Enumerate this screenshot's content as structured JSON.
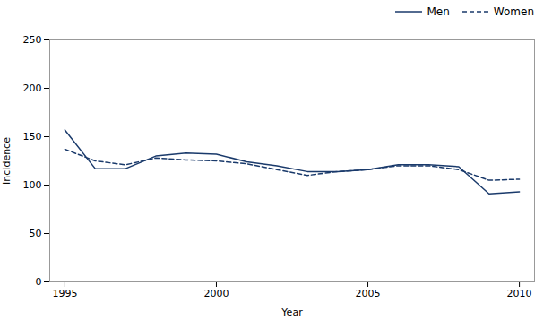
{
  "chart_data": {
    "type": "line",
    "xlabel": "Year",
    "ylabel": "Incidence",
    "x": [
      1995,
      1996,
      1997,
      1998,
      1999,
      2000,
      2001,
      2002,
      2003,
      2004,
      2005,
      2006,
      2007,
      2008,
      2009,
      2010
    ],
    "series": [
      {
        "name": "Men",
        "color": "#1a3a6b",
        "line_style": "solid",
        "values": [
          157,
          117,
          117,
          130,
          133,
          132,
          124,
          120,
          114,
          114,
          116,
          121,
          121,
          119,
          91,
          93
        ]
      },
      {
        "name": "Women",
        "color": "#1a3a6b",
        "line_style": "dashed",
        "values": [
          137,
          125,
          121,
          128,
          126,
          125,
          122,
          116,
          110,
          114,
          116,
          120,
          120,
          116,
          105,
          106
        ]
      }
    ],
    "xlim": [
      1994.5,
      2010.5
    ],
    "xticks": [
      1995,
      2000,
      2005,
      2010
    ],
    "ylim": [
      0,
      250
    ],
    "yticks": [
      0,
      50,
      100,
      150,
      200,
      250
    ],
    "grid": false,
    "legend": "upper right"
  }
}
